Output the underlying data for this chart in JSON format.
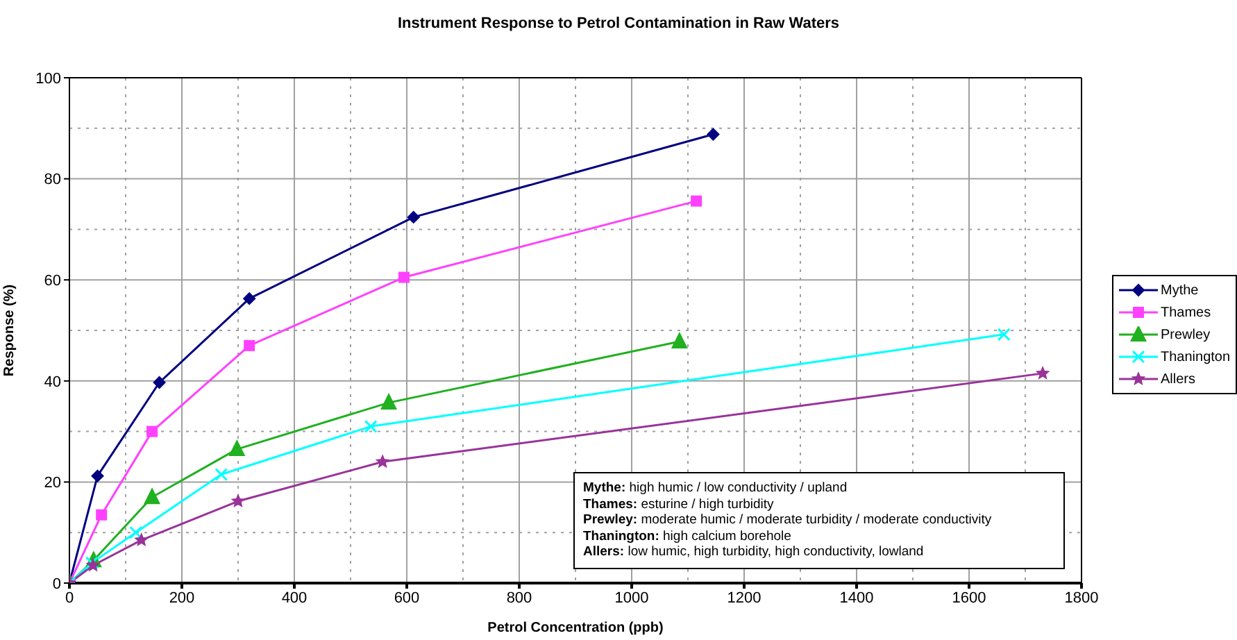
{
  "chart_data": {
    "type": "line",
    "title": "Instrument Response to Petrol Contamination in Raw Waters",
    "xlabel": "Petrol Concentration (ppb)",
    "ylabel": "Response (%)",
    "xlim": [
      0,
      1800
    ],
    "xticks": [
      0,
      200,
      400,
      600,
      800,
      1000,
      1200,
      1400,
      1600,
      1800
    ],
    "ylim": [
      0,
      100
    ],
    "yticks": [
      0,
      20,
      40,
      60,
      80,
      100
    ],
    "grid": true,
    "legend": "right",
    "series": [
      {
        "name": "Mythe",
        "color": "#000080",
        "marker": "diamond",
        "x": [
          0,
          50,
          160,
          320,
          612,
          1145
        ],
        "values": [
          0,
          21.2,
          39.7,
          56.3,
          72.4,
          88.8
        ]
      },
      {
        "name": "Thames",
        "color": "#ff40ff",
        "marker": "square",
        "x": [
          0,
          57,
          147,
          320,
          595,
          1115
        ],
        "values": [
          0,
          13.5,
          30,
          47,
          60.5,
          75.6
        ]
      },
      {
        "name": "Prewley",
        "color": "#20b020",
        "marker": "triangle",
        "x": [
          0,
          43,
          147,
          298,
          568,
          1085
        ],
        "values": [
          0,
          4.5,
          17,
          26.5,
          35.7,
          47.8
        ]
      },
      {
        "name": "Thanington",
        "color": "#00ffff",
        "marker": "cross",
        "x": [
          0,
          40,
          118,
          270,
          536,
          1662
        ],
        "values": [
          0,
          4,
          10,
          21.5,
          31,
          49.2
        ]
      },
      {
        "name": "Allers",
        "color": "#993399",
        "marker": "star",
        "x": [
          0,
          42,
          128,
          300,
          557,
          1731
        ],
        "values": [
          0,
          3.5,
          8.5,
          16.2,
          24,
          41.5
        ]
      }
    ],
    "annotations": [
      "Mythe: high humic / low conductivity / upland",
      "Thames: esturine / high turbidity",
      "Prewley: moderate humic / moderate turbidity / moderate conductivity",
      "Thanington: high calcium borehole",
      "Allers: low humic, high turbidity, high conductivity, lowland"
    ]
  }
}
